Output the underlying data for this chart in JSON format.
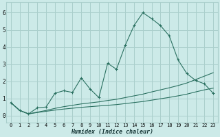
{
  "xlabel": "Humidex (Indice chaleur)",
  "bg_color": "#cceae8",
  "grid_color": "#aacfcc",
  "line_color": "#2a7060",
  "x_data": [
    0,
    1,
    2,
    3,
    4,
    5,
    6,
    7,
    8,
    9,
    10,
    11,
    12,
    13,
    14,
    15,
    16,
    17,
    18,
    19,
    20,
    21,
    22,
    23
  ],
  "y_main": [
    0.75,
    0.3,
    0.1,
    0.45,
    0.5,
    1.3,
    1.45,
    1.35,
    2.2,
    1.55,
    1.05,
    3.05,
    2.7,
    4.1,
    5.25,
    6.0,
    5.65,
    5.25,
    4.65,
    3.25,
    2.45,
    2.05,
    1.85,
    1.3
  ],
  "y_line1": [
    0.75,
    0.3,
    0.1,
    0.2,
    0.3,
    0.42,
    0.52,
    0.6,
    0.68,
    0.74,
    0.8,
    0.88,
    0.95,
    1.05,
    1.15,
    1.25,
    1.38,
    1.5,
    1.62,
    1.75,
    1.9,
    2.1,
    2.3,
    2.5
  ],
  "y_line2": [
    0.75,
    0.3,
    0.1,
    0.18,
    0.25,
    0.32,
    0.38,
    0.43,
    0.48,
    0.52,
    0.56,
    0.6,
    0.64,
    0.7,
    0.76,
    0.82,
    0.9,
    0.98,
    1.06,
    1.15,
    1.25,
    1.38,
    1.5,
    1.6
  ],
  "ylim": [
    -0.4,
    6.6
  ],
  "xlim": [
    -0.5,
    23.5
  ],
  "yticks": [
    0,
    1,
    2,
    3,
    4,
    5,
    6
  ],
  "xticks": [
    0,
    1,
    2,
    3,
    4,
    5,
    6,
    7,
    8,
    9,
    10,
    11,
    12,
    13,
    14,
    15,
    16,
    17,
    18,
    19,
    20,
    21,
    22,
    23
  ]
}
